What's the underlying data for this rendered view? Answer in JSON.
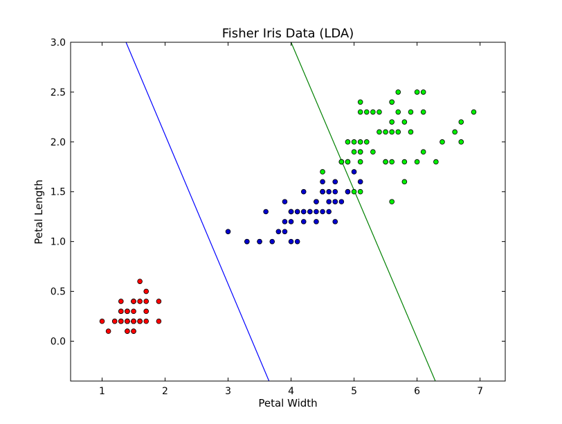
{
  "chart_data": {
    "type": "scatter",
    "title": "Fisher Iris Data (LDA)",
    "xlabel": "Petal Width",
    "ylabel": "Petal Length",
    "xlim": [
      0.5,
      7.4
    ],
    "ylim": [
      -0.4,
      3.0
    ],
    "xticks": [
      1,
      2,
      3,
      4,
      5,
      6,
      7
    ],
    "xtick_labels": [
      "1",
      "2",
      "3",
      "4",
      "5",
      "6",
      "7"
    ],
    "yticks": [
      0.0,
      0.5,
      1.0,
      1.5,
      2.0,
      2.5,
      3.0
    ],
    "ytick_labels": [
      "0.0",
      "0.5",
      "1.0",
      "1.5",
      "2.0",
      "2.5",
      "3.0"
    ],
    "grid": false,
    "series": [
      {
        "color": "#ff0000",
        "points": [
          [
            1.4,
            0.2
          ],
          [
            1.4,
            0.2
          ],
          [
            1.3,
            0.2
          ],
          [
            1.5,
            0.2
          ],
          [
            1.4,
            0.2
          ],
          [
            1.7,
            0.4
          ],
          [
            1.4,
            0.3
          ],
          [
            1.5,
            0.2
          ],
          [
            1.4,
            0.2
          ],
          [
            1.5,
            0.1
          ],
          [
            1.5,
            0.2
          ],
          [
            1.6,
            0.2
          ],
          [
            1.4,
            0.1
          ],
          [
            1.1,
            0.1
          ],
          [
            1.2,
            0.2
          ],
          [
            1.5,
            0.4
          ],
          [
            1.3,
            0.4
          ],
          [
            1.4,
            0.3
          ],
          [
            1.7,
            0.3
          ],
          [
            1.5,
            0.3
          ],
          [
            1.7,
            0.2
          ],
          [
            1.5,
            0.4
          ],
          [
            1.0,
            0.2
          ],
          [
            1.7,
            0.5
          ],
          [
            1.9,
            0.2
          ],
          [
            1.6,
            0.2
          ],
          [
            1.6,
            0.4
          ],
          [
            1.5,
            0.2
          ],
          [
            1.4,
            0.2
          ],
          [
            1.6,
            0.2
          ],
          [
            1.6,
            0.2
          ],
          [
            1.5,
            0.4
          ],
          [
            1.5,
            0.1
          ],
          [
            1.4,
            0.2
          ],
          [
            1.5,
            0.2
          ],
          [
            1.2,
            0.2
          ],
          [
            1.3,
            0.2
          ],
          [
            1.4,
            0.1
          ],
          [
            1.3,
            0.2
          ],
          [
            1.5,
            0.2
          ],
          [
            1.3,
            0.3
          ],
          [
            1.3,
            0.3
          ],
          [
            1.3,
            0.2
          ],
          [
            1.6,
            0.6
          ],
          [
            1.9,
            0.4
          ],
          [
            1.4,
            0.3
          ],
          [
            1.6,
            0.2
          ],
          [
            1.4,
            0.2
          ],
          [
            1.5,
            0.2
          ],
          [
            1.4,
            0.2
          ]
        ]
      },
      {
        "color": "#0000cc",
        "points": [
          [
            4.7,
            1.4
          ],
          [
            4.5,
            1.5
          ],
          [
            4.9,
            1.5
          ],
          [
            4.0,
            1.3
          ],
          [
            4.6,
            1.5
          ],
          [
            4.5,
            1.3
          ],
          [
            4.7,
            1.6
          ],
          [
            3.3,
            1.0
          ],
          [
            4.6,
            1.3
          ],
          [
            3.9,
            1.4
          ],
          [
            3.5,
            1.0
          ],
          [
            4.2,
            1.5
          ],
          [
            4.0,
            1.0
          ],
          [
            4.7,
            1.4
          ],
          [
            3.6,
            1.3
          ],
          [
            4.4,
            1.4
          ],
          [
            4.5,
            1.5
          ],
          [
            4.1,
            1.0
          ],
          [
            4.5,
            1.5
          ],
          [
            3.9,
            1.1
          ],
          [
            4.8,
            1.8
          ],
          [
            4.0,
            1.3
          ],
          [
            4.9,
            1.5
          ],
          [
            4.7,
            1.2
          ],
          [
            4.3,
            1.3
          ],
          [
            4.4,
            1.4
          ],
          [
            4.8,
            1.4
          ],
          [
            5.0,
            1.7
          ],
          [
            4.5,
            1.5
          ],
          [
            3.5,
            1.0
          ],
          [
            3.8,
            1.1
          ],
          [
            3.7,
            1.0
          ],
          [
            3.9,
            1.2
          ],
          [
            5.1,
            1.6
          ],
          [
            4.5,
            1.5
          ],
          [
            4.5,
            1.6
          ],
          [
            4.7,
            1.5
          ],
          [
            4.4,
            1.3
          ],
          [
            4.1,
            1.3
          ],
          [
            4.0,
            1.3
          ],
          [
            4.4,
            1.2
          ],
          [
            4.6,
            1.4
          ],
          [
            4.0,
            1.2
          ],
          [
            3.3,
            1.0
          ],
          [
            4.2,
            1.3
          ],
          [
            4.2,
            1.2
          ],
          [
            4.2,
            1.3
          ],
          [
            4.3,
            1.3
          ],
          [
            3.0,
            1.1
          ],
          [
            4.1,
            1.3
          ]
        ]
      },
      {
        "color": "#00ee00",
        "points": [
          [
            6.0,
            2.5
          ],
          [
            5.1,
            1.9
          ],
          [
            5.9,
            2.1
          ],
          [
            5.6,
            1.8
          ],
          [
            5.8,
            2.2
          ],
          [
            6.6,
            2.1
          ],
          [
            4.5,
            1.7
          ],
          [
            6.3,
            1.8
          ],
          [
            5.8,
            1.8
          ],
          [
            6.1,
            2.5
          ],
          [
            5.1,
            2.0
          ],
          [
            5.3,
            1.9
          ],
          [
            5.5,
            2.1
          ],
          [
            5.0,
            2.0
          ],
          [
            5.1,
            2.4
          ],
          [
            5.3,
            2.3
          ],
          [
            5.5,
            1.8
          ],
          [
            6.7,
            2.2
          ],
          [
            6.9,
            2.3
          ],
          [
            5.0,
            1.5
          ],
          [
            5.7,
            2.3
          ],
          [
            4.9,
            2.0
          ],
          [
            6.7,
            2.0
          ],
          [
            4.9,
            1.8
          ],
          [
            5.7,
            2.1
          ],
          [
            6.0,
            1.8
          ],
          [
            4.8,
            1.8
          ],
          [
            4.9,
            1.8
          ],
          [
            5.6,
            2.1
          ],
          [
            5.8,
            1.6
          ],
          [
            6.1,
            1.9
          ],
          [
            6.4,
            2.0
          ],
          [
            5.6,
            2.2
          ],
          [
            5.1,
            1.5
          ],
          [
            5.6,
            1.4
          ],
          [
            6.1,
            2.3
          ],
          [
            5.6,
            2.4
          ],
          [
            5.5,
            1.8
          ],
          [
            4.8,
            1.8
          ],
          [
            5.4,
            2.1
          ],
          [
            5.6,
            2.4
          ],
          [
            5.1,
            2.3
          ],
          [
            5.1,
            1.9
          ],
          [
            5.9,
            2.3
          ],
          [
            5.7,
            2.5
          ],
          [
            5.2,
            2.3
          ],
          [
            5.0,
            1.9
          ],
          [
            5.2,
            2.0
          ],
          [
            5.4,
            2.3
          ],
          [
            5.1,
            1.8
          ]
        ]
      }
    ],
    "lines": [
      {
        "color": "#0000ff",
        "from": [
          1.38,
          3.0
        ],
        "to": [
          3.65,
          -0.4
        ]
      },
      {
        "color": "#008000",
        "from": [
          4.0,
          3.0
        ],
        "to": [
          6.29,
          -0.4
        ]
      }
    ]
  }
}
